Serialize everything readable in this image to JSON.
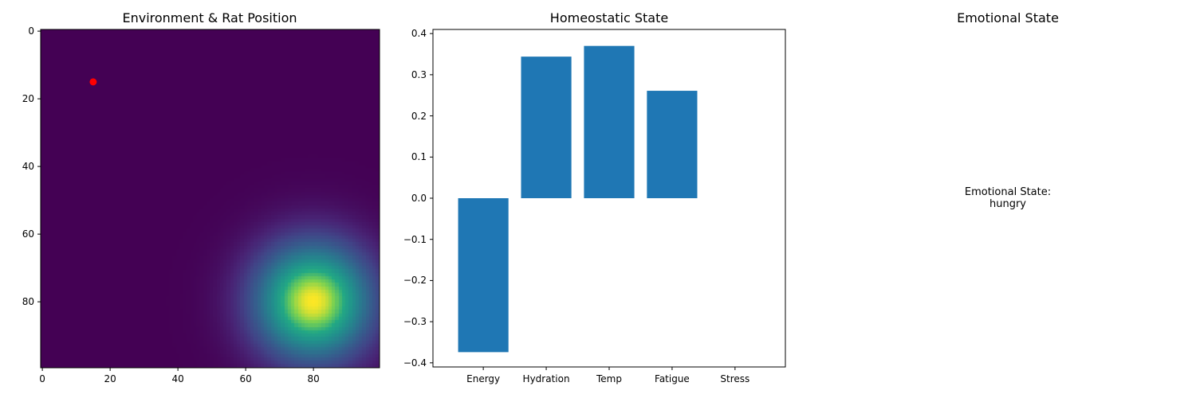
{
  "chart_data": [
    {
      "type": "heatmap",
      "title": "Environment & Rat Position",
      "grid_size": 100,
      "colormap": "viridis",
      "resource_center": [
        80,
        80
      ],
      "xlim": [
        -0.5,
        99.5
      ],
      "ylim": [
        99.5,
        -0.5
      ],
      "x_ticks": [
        0,
        20,
        40,
        60,
        80
      ],
      "y_ticks": [
        0,
        20,
        40,
        60,
        80
      ],
      "rat_position": {
        "x": 15,
        "y": 15,
        "color": "#ff0000"
      },
      "grid": false
    },
    {
      "type": "bar",
      "title": "Homeostatic State",
      "categories": [
        "Energy",
        "Hydration",
        "Temp",
        "Fatigue",
        "Stress"
      ],
      "values": [
        -0.374,
        0.344,
        0.37,
        0.261,
        0.0
      ],
      "ylim": [
        -0.41,
        0.41
      ],
      "y_ticks": [
        -0.4,
        -0.3,
        -0.2,
        -0.1,
        0.0,
        0.1,
        0.2,
        0.3,
        0.4
      ],
      "bar_color": "#1f77b4",
      "grid": false
    },
    {
      "type": "text",
      "title": "Emotional State",
      "text": "Emotional State:\nhungry"
    }
  ]
}
